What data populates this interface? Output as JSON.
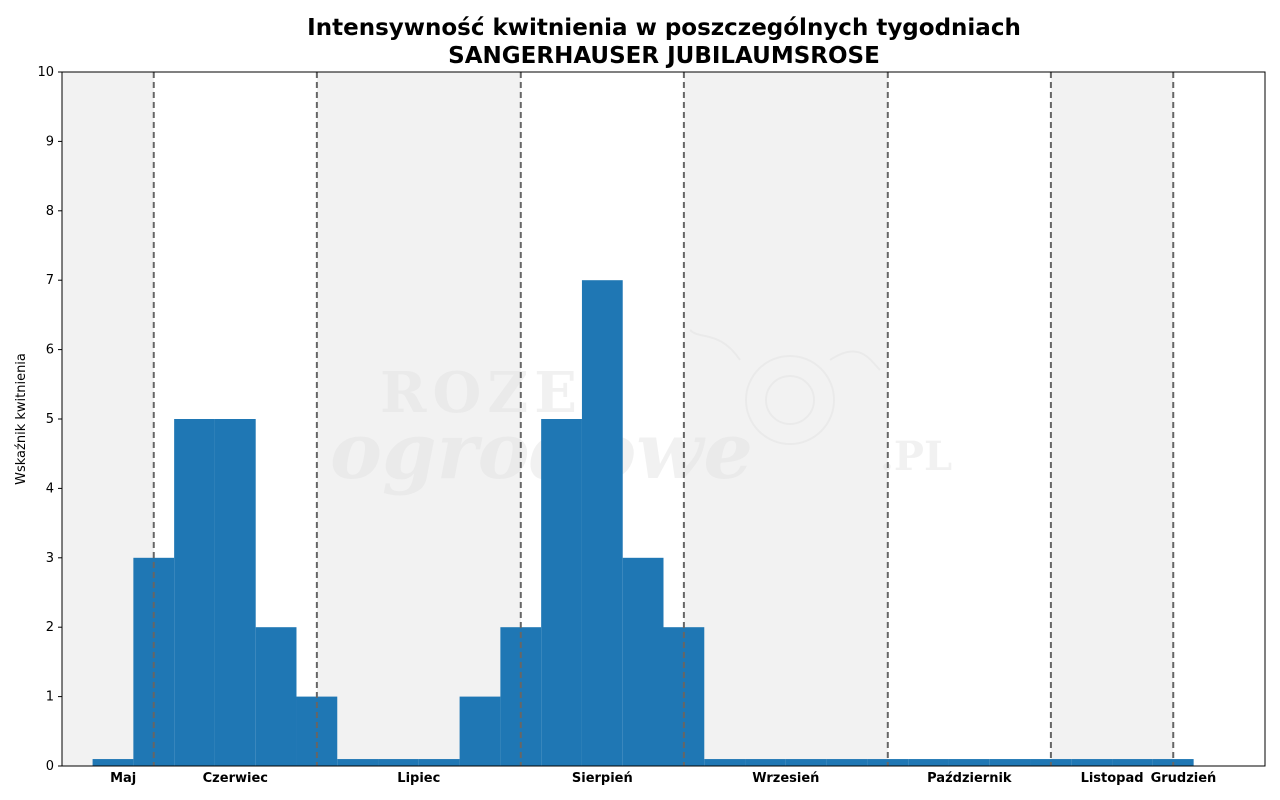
{
  "chart_data": {
    "type": "bar",
    "title": "Intensywność kwitnienia w poszczególnych tygodniach",
    "subtitle": "SANGERHAUSER JUBILAUMSROSE",
    "xlabel": "",
    "ylabel": "Wskaźnik kwitnienia",
    "ylim": [
      0,
      10
    ],
    "yticks": [
      "0",
      "1",
      "2",
      "3",
      "4",
      "5",
      "6",
      "7",
      "8",
      "9",
      "10"
    ],
    "grid": false,
    "watermark": {
      "line1": "ROZE",
      "line2": "ogrodowe",
      "suffix": ".PL"
    },
    "months": [
      {
        "label": "Maj",
        "start": -1.25,
        "end": 1,
        "shaded": true
      },
      {
        "label": "Czerwiec",
        "start": 1,
        "end": 5,
        "shaded": false
      },
      {
        "label": "Lipiec",
        "start": 5,
        "end": 10,
        "shaded": true
      },
      {
        "label": "Sierpień",
        "start": 10,
        "end": 14,
        "shaded": false
      },
      {
        "label": "Wrzesień",
        "start": 14,
        "end": 19,
        "shaded": true
      },
      {
        "label": "Październik",
        "start": 19,
        "end": 23,
        "shaded": false
      },
      {
        "label": "Listopad",
        "start": 23,
        "end": 26,
        "shaded": true
      },
      {
        "label": "Grudzień",
        "start": 26,
        "end": 28.25,
        "shaded": false
      }
    ],
    "weeks": [
      0,
      1,
      2,
      3,
      4,
      5,
      6,
      7,
      8,
      9,
      10,
      11,
      12,
      13,
      14,
      15,
      16,
      17,
      18,
      19,
      20,
      21,
      22,
      23,
      24,
      25,
      26
    ],
    "values": [
      0.1,
      3,
      5,
      5,
      2,
      1,
      0.1,
      0.1,
      0.1,
      1,
      2,
      5,
      7,
      3,
      2,
      0.1,
      0.1,
      0.1,
      0.1,
      0.1,
      0.1,
      0.1,
      0.1,
      0.1,
      0.1,
      0.1,
      0.1
    ],
    "bar_color": "#1f77b4",
    "shade_color": "#f2f2f2",
    "divider_color": "#666666"
  }
}
